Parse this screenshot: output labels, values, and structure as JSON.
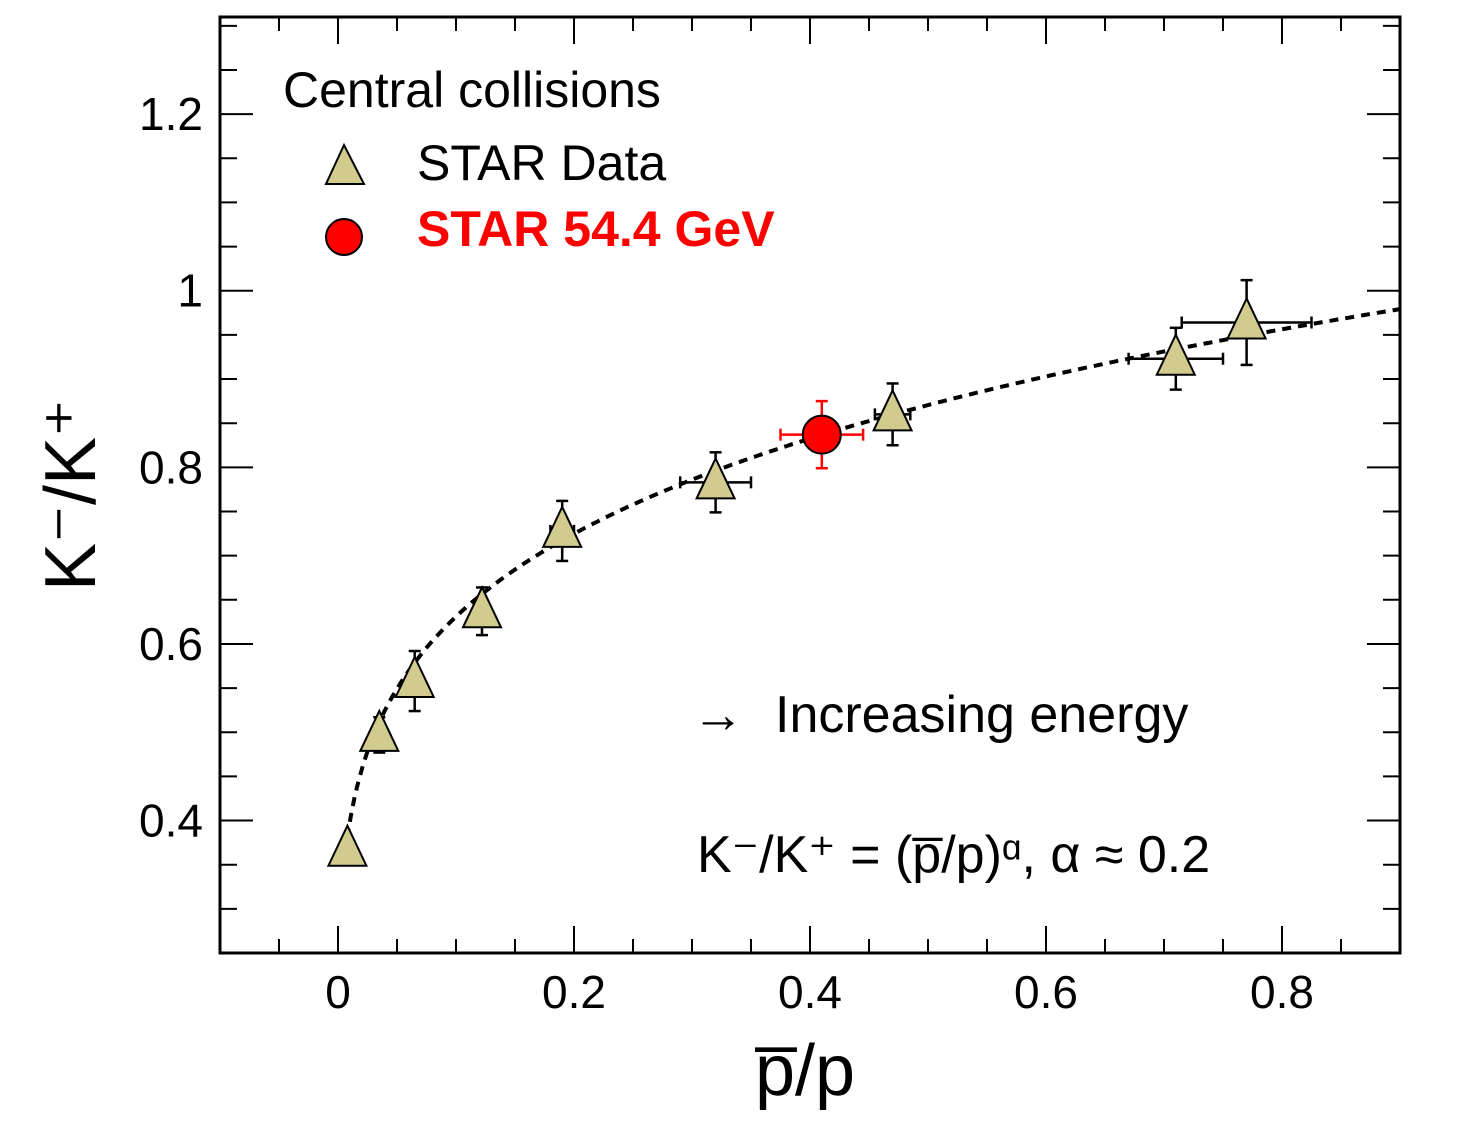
{
  "chart_data": {
    "type": "scatter",
    "xlabel": "p̅/p",
    "ylabel": "K⁻/K⁺",
    "xlim": [
      -0.1,
      0.9
    ],
    "ylim": [
      0.25,
      1.31
    ],
    "x_ticks": [
      "0",
      "0.2",
      "0.4",
      "0.6",
      "0.8"
    ],
    "y_ticks": [
      "0.4",
      "0.6",
      "0.8",
      "1",
      "1.2"
    ],
    "legend": {
      "title": "Central collisions",
      "placement": "top-left",
      "entries": [
        {
          "label": "STAR Data",
          "marker": "triangle",
          "color": "#d2cb8e"
        },
        {
          "label": "STAR 54.4 GeV",
          "marker": "circle",
          "color": "#ff0000"
        }
      ]
    },
    "annotations": {
      "energy_arrow": "→",
      "energy_text": "Increasing energy",
      "formula": "K⁻/K⁺ = (p̅/p)ᵅ, α ≈ 0.2"
    },
    "series": [
      {
        "name": "STAR Data",
        "marker": "triangle",
        "color": "#d2cb8e",
        "points": [
          {
            "x": 0.008,
            "y": 0.367,
            "yerr": 0.0,
            "xerr": 0.0
          },
          {
            "x": 0.035,
            "y": 0.497,
            "yerr": 0.02,
            "xerr": 0.0
          },
          {
            "x": 0.065,
            "y": 0.558,
            "yerr": 0.034,
            "xerr": 0.0
          },
          {
            "x": 0.122,
            "y": 0.637,
            "yerr": 0.027,
            "xerr": 0.0
          },
          {
            "x": 0.19,
            "y": 0.728,
            "yerr": 0.034,
            "xerr": 0.01
          },
          {
            "x": 0.32,
            "y": 0.783,
            "yerr": 0.034,
            "xerr": 0.03
          },
          {
            "x": 0.47,
            "y": 0.86,
            "yerr": 0.035,
            "xerr": 0.015
          },
          {
            "x": 0.71,
            "y": 0.923,
            "yerr": 0.035,
            "xerr": 0.04
          },
          {
            "x": 0.77,
            "y": 0.964,
            "yerr": 0.048,
            "xerr": 0.055
          }
        ]
      },
      {
        "name": "STAR 54.4 GeV",
        "marker": "circle",
        "color": "#ff0000",
        "points": [
          {
            "x": 0.41,
            "y": 0.837,
            "yerr": 0.038,
            "xerr": 0.035
          }
        ]
      }
    ],
    "fit": {
      "function": "power",
      "alpha": 0.2,
      "coefficient": 1.0,
      "xrange": [
        0.008,
        0.9
      ],
      "style": "dotted"
    },
    "grid": false
  }
}
